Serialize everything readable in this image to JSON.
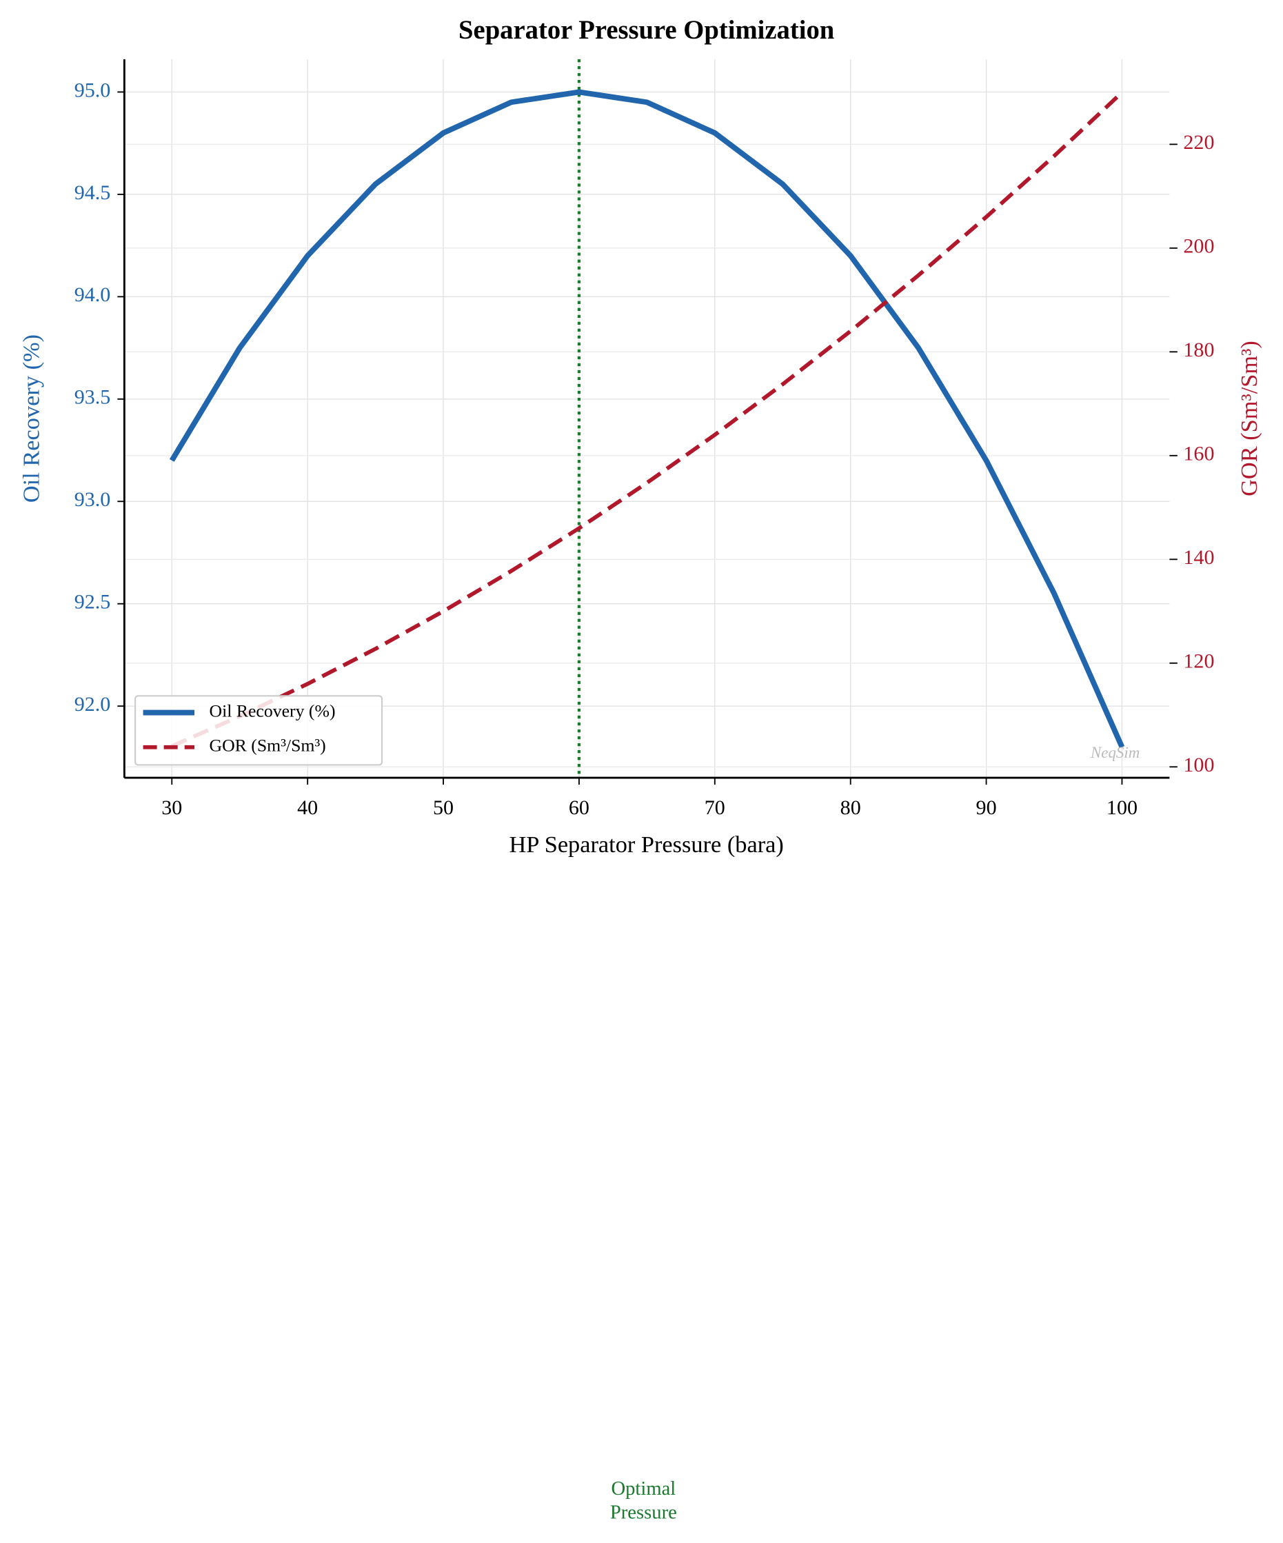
{
  "chart_data": {
    "type": "line",
    "title": "Separator Pressure Optimization",
    "xlabel": "HP Separator Pressure (bara)",
    "ylabel": "Oil Recovery (%)",
    "y2label": "GOR (Sm³/Sm³)",
    "x": [
      30,
      35,
      40,
      45,
      50,
      55,
      60,
      65,
      70,
      75,
      80,
      85,
      90,
      95,
      100
    ],
    "series": [
      {
        "name": "Oil Recovery (%)",
        "color": "#2166ac",
        "style": "solid",
        "values": [
          93.2,
          93.75,
          94.2,
          94.55,
          94.8,
          94.95,
          95.0,
          94.95,
          94.8,
          94.55,
          94.2,
          93.75,
          93.2,
          92.55,
          91.8
        ]
      },
      {
        "name": "GOR (Sm³/Sm³)",
        "color": "#b2182b",
        "style": "dashed",
        "axis": "y2",
        "values": [
          104,
          109.75,
          116,
          122.75,
          130,
          137.75,
          146,
          154.75,
          164,
          173.75,
          184,
          194.75,
          206,
          217.75,
          230
        ]
      }
    ],
    "xlim": [
      26.5,
      103.5
    ],
    "xticks": [
      30,
      40,
      50,
      60,
      70,
      80,
      90,
      100
    ],
    "ylim": [
      91.65,
      95.16
    ],
    "yticks": [
      {
        "value": 92,
        "label": "92.0"
      },
      92.5,
      {
        "value": 93,
        "label": "93.0"
      },
      93.5,
      {
        "value": 94,
        "label": "94.0"
      },
      94.5,
      {
        "value": 95,
        "label": "95.0"
      }
    ],
    "y2lim": [
      97.9,
      236.4
    ],
    "y2ticks": [
      100,
      120,
      140,
      160,
      180,
      200,
      220
    ],
    "grid": true,
    "legend": "lower left",
    "vline": {
      "x": 60,
      "color": "#1a7a2e"
    },
    "annotation": {
      "lines": [
        "Optimal",
        "Pressure"
      ],
      "color": "#1a7a2e"
    },
    "watermark": "NeqSim"
  }
}
